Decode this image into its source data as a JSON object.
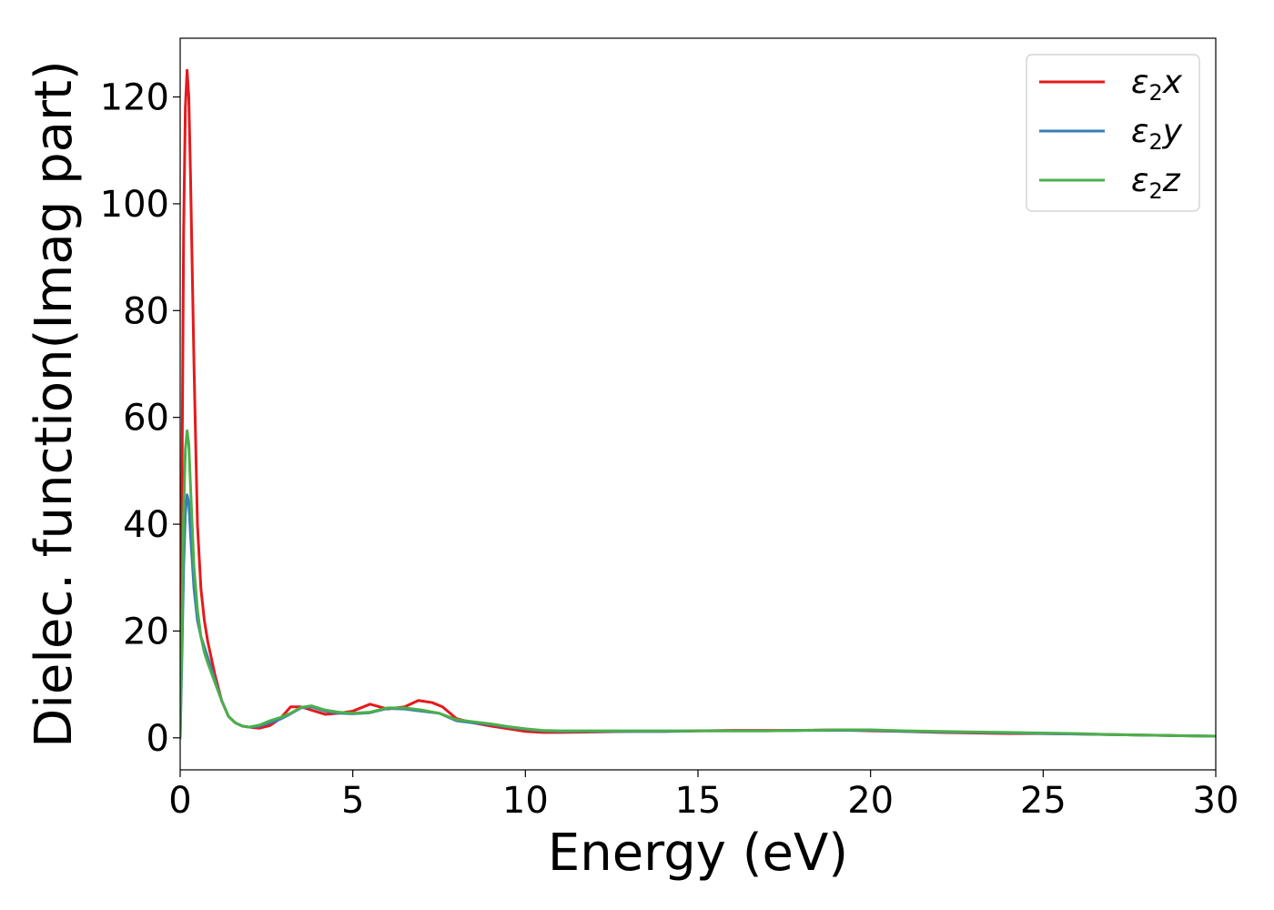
{
  "chart_data": {
    "type": "line",
    "title": "",
    "xlabel": "Energy (eV)",
    "ylabel": "Dielec. function(Imag part)",
    "xlim": [
      0,
      30
    ],
    "ylim": [
      -6,
      131
    ],
    "xticks": [
      0,
      5,
      10,
      15,
      20,
      25,
      30
    ],
    "xtick_labels": [
      "0",
      "5",
      "10",
      "15",
      "20",
      "25",
      "30"
    ],
    "yticks": [
      0,
      20,
      40,
      60,
      80,
      100,
      120
    ],
    "ytick_labels": [
      "0",
      "20",
      "40",
      "60",
      "80",
      "100",
      "120"
    ],
    "grid": false,
    "legend_position": "top-right",
    "series": [
      {
        "name": "ε2x",
        "legend_base": "ε",
        "legend_sub": "2",
        "legend_var": "x",
        "color": "#e41a1c",
        "x": [
          0,
          0.05,
          0.1,
          0.15,
          0.2,
          0.25,
          0.3,
          0.4,
          0.5,
          0.6,
          0.7,
          0.8,
          1.0,
          1.2,
          1.4,
          1.6,
          1.8,
          2.0,
          2.3,
          2.6,
          2.9,
          3.2,
          3.5,
          3.8,
          4.2,
          4.6,
          5.0,
          5.5,
          6.0,
          6.5,
          6.9,
          7.3,
          7.6,
          8.0,
          8.5,
          9.0,
          9.5,
          10.0,
          10.5,
          11.0,
          12.0,
          13.0,
          14.0,
          15.0,
          16.0,
          17.0,
          18.0,
          19.0,
          20.0,
          21.0,
          22.0,
          23.0,
          24.0,
          25.0,
          26.0,
          27.0,
          28.0,
          29.0,
          30.0
        ],
        "y": [
          0,
          45,
          95,
          118,
          125,
          120,
          105,
          70,
          40,
          28,
          22,
          18,
          12,
          7,
          4,
          2.8,
          2.2,
          2,
          1.8,
          2.3,
          3.6,
          5.8,
          5.8,
          5.2,
          4.4,
          4.6,
          5.0,
          6.3,
          5.4,
          5.8,
          7.0,
          6.6,
          5.8,
          3.6,
          2.8,
          2.2,
          1.7,
          1.2,
          1.0,
          1.0,
          1.1,
          1.2,
          1.2,
          1.3,
          1.4,
          1.4,
          1.4,
          1.5,
          1.3,
          1.2,
          1.0,
          0.9,
          0.8,
          0.8,
          0.7,
          0.6,
          0.5,
          0.4,
          0.3
        ]
      },
      {
        "name": "ε2y",
        "legend_base": "ε",
        "legend_sub": "2",
        "legend_var": "y",
        "color": "#377eb8",
        "x": [
          0,
          0.05,
          0.1,
          0.15,
          0.2,
          0.25,
          0.3,
          0.4,
          0.5,
          0.6,
          0.7,
          0.8,
          1.0,
          1.2,
          1.4,
          1.6,
          1.8,
          2.0,
          2.3,
          2.6,
          2.9,
          3.2,
          3.5,
          3.8,
          4.2,
          4.6,
          5.0,
          5.5,
          6.0,
          6.5,
          7.0,
          7.5,
          8.0,
          8.5,
          9.0,
          9.5,
          10.0,
          10.5,
          11.0,
          12.0,
          13.0,
          14.0,
          15.0,
          16.0,
          17.0,
          18.0,
          19.0,
          20.0,
          21.0,
          22.0,
          23.0,
          24.0,
          25.0,
          26.0,
          27.0,
          28.0,
          29.0,
          30.0
        ],
        "y": [
          0,
          15,
          32,
          42,
          45.5,
          44,
          38,
          28,
          22,
          19,
          17,
          15,
          11,
          7,
          4,
          2.8,
          2.2,
          2,
          2.2,
          2.8,
          3.5,
          4.5,
          5.6,
          5.8,
          5.0,
          4.6,
          4.5,
          4.7,
          5.5,
          5.4,
          5.0,
          4.6,
          3.2,
          2.8,
          2.5,
          2.0,
          1.6,
          1.3,
          1.2,
          1.2,
          1.2,
          1.2,
          1.3,
          1.3,
          1.3,
          1.4,
          1.4,
          1.4,
          1.2,
          1.1,
          1.0,
          0.9,
          0.8,
          0.7,
          0.6,
          0.5,
          0.4,
          0.3
        ]
      },
      {
        "name": "ε2z",
        "legend_base": "ε",
        "legend_sub": "2",
        "legend_var": "z",
        "color": "#4daf4a",
        "x": [
          0,
          0.05,
          0.1,
          0.15,
          0.2,
          0.25,
          0.3,
          0.4,
          0.5,
          0.6,
          0.7,
          0.8,
          1.0,
          1.2,
          1.4,
          1.6,
          1.8,
          2.0,
          2.3,
          2.6,
          2.9,
          3.2,
          3.5,
          3.8,
          4.2,
          4.6,
          5.0,
          5.5,
          6.0,
          6.5,
          7.0,
          7.5,
          8.0,
          8.5,
          9.0,
          9.5,
          10.0,
          10.5,
          11.0,
          12.0,
          13.0,
          14.0,
          15.0,
          16.0,
          17.0,
          18.0,
          19.0,
          20.0,
          21.0,
          22.0,
          23.0,
          24.0,
          25.0,
          26.0,
          27.0,
          28.0,
          29.0,
          30.0
        ],
        "y": [
          0,
          20,
          42,
          54,
          57.5,
          55,
          47,
          32,
          24,
          19,
          16,
          14,
          10.5,
          7,
          4,
          2.8,
          2.2,
          2,
          2.4,
          3.2,
          3.8,
          4.6,
          5.7,
          6.0,
          5.2,
          4.8,
          4.6,
          4.8,
          5.6,
          5.6,
          5.2,
          4.6,
          3.4,
          3.0,
          2.6,
          2.1,
          1.7,
          1.4,
          1.3,
          1.3,
          1.3,
          1.3,
          1.3,
          1.3,
          1.3,
          1.4,
          1.5,
          1.5,
          1.3,
          1.2,
          1.1,
          1.0,
          0.9,
          0.8,
          0.6,
          0.5,
          0.4,
          0.3
        ]
      }
    ]
  }
}
